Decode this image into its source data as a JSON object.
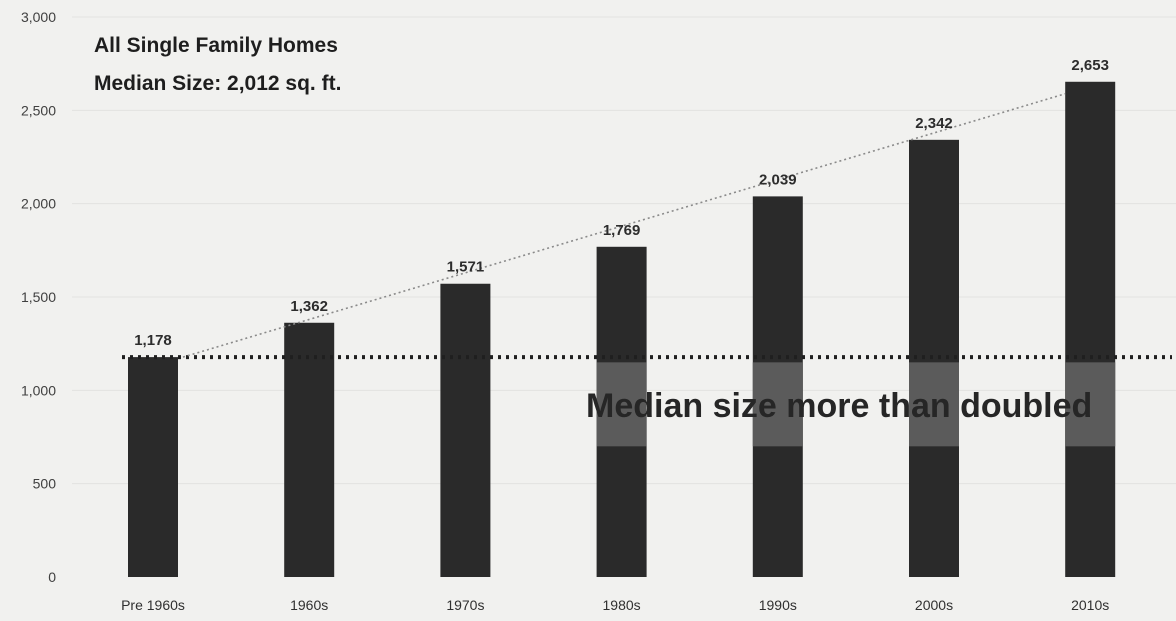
{
  "chart_data": {
    "type": "bar",
    "title_lines": [
      "All Single Family Homes",
      "Median Size: 2,012 sq. ft."
    ],
    "categories": [
      "Pre 1960s",
      "1960s",
      "1970s",
      "1980s",
      "1990s",
      "2000s",
      "2010s"
    ],
    "values": [
      1178,
      1362,
      1571,
      1769,
      2039,
      2342,
      2653
    ],
    "data_labels": [
      "1,178",
      "1,362",
      "1,571",
      "1,769",
      "2,039",
      "2,342",
      "2,653"
    ],
    "ylim": [
      0,
      3000
    ],
    "yticks": [
      0,
      500,
      1000,
      1500,
      2000,
      2500,
      3000
    ],
    "ytick_labels": [
      "0",
      "500",
      "1,000",
      "1,500",
      "2,000",
      "2,500",
      "3,000"
    ],
    "reference_line": {
      "value": 1178,
      "style": "dotted"
    },
    "trend_line": {
      "from_value": 1178,
      "to_value": 2653,
      "style": "dotted"
    },
    "annotation": "Median size more than doubled",
    "highlight_band": {
      "range": [
        700,
        1150
      ]
    },
    "grid": true,
    "colors": {
      "bar": "#2a2a2a",
      "band": "#5b5b5b",
      "background": "#f1f1ef",
      "trend": "#8a8a8a"
    }
  }
}
